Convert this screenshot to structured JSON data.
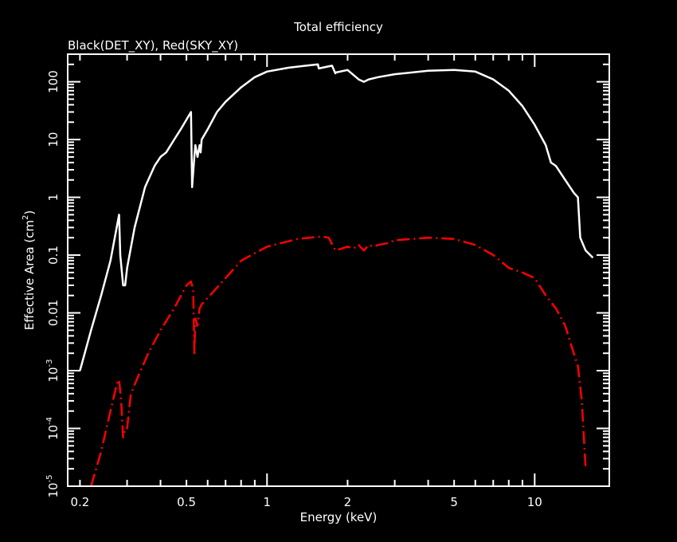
{
  "chart_data": {
    "type": "line",
    "title": "Total efficiency",
    "subtitle": "Black(DET_XY), Red(SKY_XY)",
    "xlabel": "Energy (keV)",
    "ylabel_main": "Effective Area (cm",
    "ylabel_sup": "2",
    "ylabel_close": ")",
    "x_scale": "log",
    "y_scale": "log",
    "xlim": [
      0.18,
      19
    ],
    "ylim": [
      1e-05,
      300
    ],
    "x_ticks": [
      {
        "value": 0.2,
        "label": "0.2"
      },
      {
        "value": 0.5,
        "label": "0.5"
      },
      {
        "value": 1,
        "label": "1"
      },
      {
        "value": 2,
        "label": "2"
      },
      {
        "value": 5,
        "label": "5"
      },
      {
        "value": 10,
        "label": "10"
      }
    ],
    "y_ticks": [
      {
        "value": 100,
        "label": "100"
      },
      {
        "value": 10,
        "label": "10"
      },
      {
        "value": 1,
        "label": "1"
      },
      {
        "value": 0.1,
        "label": "0.1"
      },
      {
        "value": 0.01,
        "label": "0.01"
      },
      {
        "value": 0.001,
        "base": "10",
        "exp": "-3"
      },
      {
        "value": 0.0001,
        "base": "10",
        "exp": "-4"
      },
      {
        "value": 1e-05,
        "base": "10",
        "exp": "-5"
      }
    ],
    "series": [
      {
        "color": "#ffffff",
        "dash": "",
        "x": [
          0.2,
          0.22,
          0.24,
          0.26,
          0.28,
          0.283,
          0.29,
          0.295,
          0.3,
          0.32,
          0.35,
          0.38,
          0.4,
          0.42,
          0.45,
          0.48,
          0.52,
          0.525,
          0.535,
          0.54,
          0.55,
          0.56,
          0.565,
          0.57,
          0.6,
          0.65,
          0.7,
          0.8,
          0.9,
          1.0,
          1.2,
          1.4,
          1.55,
          1.56,
          1.75,
          1.8,
          1.81,
          2.0,
          2.2,
          2.3,
          2.4,
          2.6,
          3.0,
          4.0,
          5.0,
          6.0,
          7.0,
          8.0,
          9.0,
          10.0,
          11.0,
          11.5,
          12.0,
          13.0,
          14.0,
          14.5,
          14.8,
          15.5,
          16.5
        ],
        "y": [
          0.001,
          0.005,
          0.02,
          0.08,
          0.5,
          0.1,
          0.03,
          0.03,
          0.06,
          0.3,
          1.5,
          3.5,
          5,
          6,
          10,
          16,
          30,
          1.5,
          5,
          8,
          5,
          8,
          6,
          10,
          15,
          30,
          45,
          80,
          120,
          150,
          175,
          190,
          200,
          170,
          190,
          140,
          145,
          160,
          110,
          100,
          110,
          120,
          135,
          155,
          160,
          150,
          110,
          70,
          38,
          18,
          8,
          4,
          3.5,
          2,
          1.2,
          1,
          0.2,
          0.12,
          0.09
        ]
      },
      {
        "color": "#ff0000",
        "dash": "16 5 2 5",
        "x": [
          0.22,
          0.24,
          0.26,
          0.275,
          0.28,
          0.285,
          0.29,
          0.295,
          0.3,
          0.31,
          0.33,
          0.36,
          0.4,
          0.45,
          0.5,
          0.52,
          0.53,
          0.535,
          0.54,
          0.55,
          0.56,
          0.57,
          0.6,
          0.7,
          0.8,
          1.0,
          1.3,
          1.6,
          1.7,
          1.8,
          2.0,
          2.1,
          2.2,
          2.3,
          2.4,
          2.5,
          2.6,
          2.8,
          3.0,
          4.0,
          5.0,
          6.0,
          7.0,
          8.0,
          9.0,
          10.0,
          11.0,
          12.0,
          13.0,
          14.0,
          14.5,
          15.0,
          15.5
        ],
        "y": [
          1e-05,
          4e-05,
          0.0002,
          0.0006,
          0.0007,
          0.0003,
          7e-05,
          0.0001,
          0.0001,
          0.0004,
          0.0008,
          0.002,
          0.005,
          0.012,
          0.03,
          0.035,
          0.025,
          0.002,
          0.008,
          0.006,
          0.012,
          0.014,
          0.018,
          0.04,
          0.08,
          0.14,
          0.19,
          0.21,
          0.2,
          0.12,
          0.14,
          0.13,
          0.15,
          0.12,
          0.15,
          0.14,
          0.15,
          0.16,
          0.18,
          0.2,
          0.19,
          0.15,
          0.1,
          0.06,
          0.05,
          0.04,
          0.02,
          0.012,
          0.006,
          0.002,
          0.0012,
          0.0003,
          2e-05
        ]
      }
    ]
  }
}
